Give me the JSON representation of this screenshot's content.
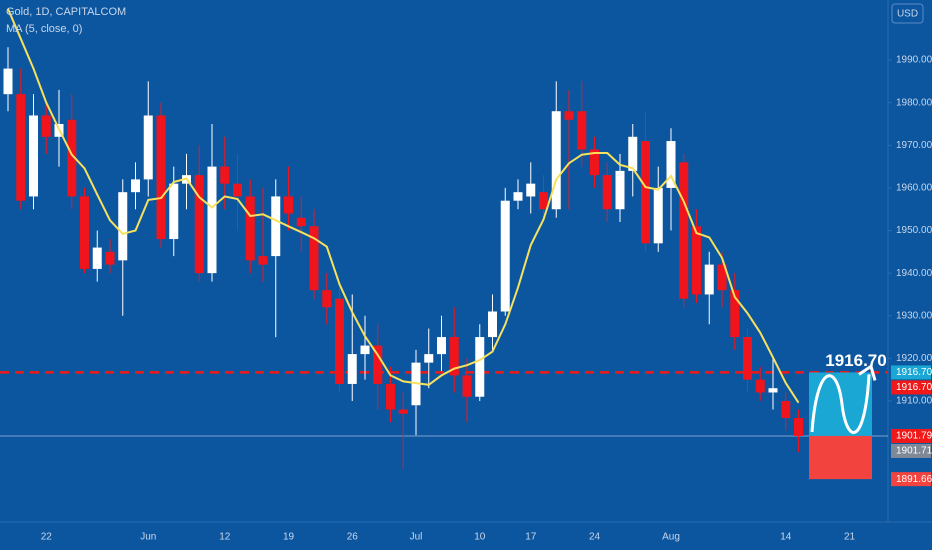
{
  "chart_data": {
    "type": "candlestick",
    "title": "Gold, 1D, CAPITALCOM",
    "currency": "USD",
    "categories": [
      null,
      null,
      null,
      "22",
      null,
      null,
      null,
      null,
      null,
      null,
      null,
      "Jun",
      null,
      null,
      null,
      null,
      null,
      "12",
      null,
      null,
      null,
      null,
      "19",
      null,
      null,
      null,
      null,
      "26",
      null,
      null,
      null,
      null,
      "Jul",
      null,
      null,
      null,
      null,
      "10",
      null,
      null,
      null,
      "17",
      null,
      null,
      null,
      null,
      "24",
      null,
      null,
      null,
      null,
      null,
      "Aug",
      null,
      null,
      null,
      null,
      null,
      null,
      null,
      null,
      "14",
      null,
      null,
      null,
      null,
      "21"
    ],
    "open": [
      1982,
      1982,
      1958,
      1977,
      1972,
      1976,
      1958,
      1941,
      1945,
      1943,
      1959,
      1962,
      1977,
      1948,
      1961,
      1963,
      1940,
      1965,
      1961,
      1958,
      1944,
      1944,
      1958,
      1953,
      1951,
      1936,
      1934,
      1914,
      1921,
      1923,
      1914,
      1908,
      1909,
      1919,
      1921,
      1925,
      1916,
      1911,
      1925,
      1931,
      1957,
      1958,
      1959,
      1955,
      1978,
      1978,
      1969,
      1963,
      1955,
      1964,
      1971,
      1947,
      1960,
      1966,
      1951,
      1935,
      1942,
      1936,
      1925,
      1915,
      1912,
      1910,
      1906,
      null,
      null,
      null,
      null
    ],
    "high": [
      1993,
      1988,
      1982,
      1980,
      1983,
      1982,
      1960,
      1950,
      1948,
      1962,
      1966,
      1985,
      1980,
      1965,
      1968,
      1970,
      1975,
      1972,
      1968,
      1962,
      1960,
      1962,
      1965,
      1958,
      1955,
      1940,
      1937,
      1935,
      1930,
      1928,
      1918,
      1912,
      1922,
      1927,
      1930,
      1932,
      1920,
      1928,
      1935,
      1960,
      1962,
      1966,
      1963,
      1985,
      1983,
      1985,
      1972,
      1966,
      1968,
      1975,
      1978,
      1965,
      1974,
      1968,
      1955,
      1945,
      1945,
      1940,
      1927,
      1918,
      1920,
      1912,
      1908,
      null,
      null,
      null,
      null
    ],
    "low": [
      1978,
      1955,
      1955,
      1968,
      1965,
      1955,
      1940,
      1938,
      1940,
      1930,
      1955,
      1958,
      1946,
      1944,
      1955,
      1938,
      1938,
      1955,
      1950,
      1940,
      1938,
      1925,
      1950,
      1945,
      1934,
      1928,
      1912,
      1910,
      1915,
      1908,
      1905,
      1894,
      1902,
      1913,
      1917,
      1912,
      1905,
      1910,
      1922,
      1930,
      1955,
      1954,
      1952,
      1953,
      1955,
      1965,
      1960,
      1952,
      1952,
      1958,
      1945,
      1945,
      1950,
      1932,
      1933,
      1928,
      1932,
      1922,
      1912,
      1910,
      1908,
      1903,
      1898,
      null,
      null,
      null,
      null
    ],
    "close": [
      1988,
      1957,
      1977,
      1972,
      1975,
      1958,
      1941,
      1946,
      1942,
      1959,
      1962,
      1977,
      1948,
      1961,
      1963,
      1940,
      1965,
      1961,
      1958,
      1943,
      1942,
      1958,
      1954,
      1951,
      1936,
      1932,
      1914,
      1921,
      1923,
      1914,
      1908,
      1907,
      1919,
      1921,
      1925,
      1916,
      1911,
      1925,
      1931,
      1957,
      1959,
      1961,
      1955,
      1978,
      1976,
      1969,
      1963,
      1955,
      1964,
      1972,
      1947,
      1960,
      1971,
      1934,
      1935,
      1942,
      1936,
      1925,
      1915,
      1912,
      1913,
      1906,
      1901.79,
      null,
      null,
      null,
      null
    ],
    "up_color": "#ffffff",
    "down_color": "#f0151c",
    "series": [
      {
        "name": "MA (5, close, 0)",
        "color": "#f7e15c",
        "values": [
          2002,
          1995,
          1988,
          1980,
          1973.8,
          1967.8,
          1964.6,
          1958.4,
          1952.4,
          1949.2,
          1950,
          1957.2,
          1957.6,
          1961.4,
          1962.2,
          1957.8,
          1955.4,
          1958,
          1957.4,
          1953.4,
          1953.8,
          1952.4,
          1951,
          1949.6,
          1948.2,
          1946.2,
          1937.4,
          1930.8,
          1925.2,
          1920.8,
          1916,
          1914.6,
          1914.2,
          1913.8,
          1916,
          1917.6,
          1918.4,
          1919.6,
          1921.6,
          1928,
          1936.6,
          1946.6,
          1952.6,
          1962,
          1965.8,
          1967.8,
          1968.2,
          1968.2,
          1965.4,
          1964.6,
          1960.2,
          1959.6,
          1962.8,
          1956.8,
          1949.4,
          1948.4,
          1943.6,
          1934.4,
          1930.6,
          1926,
          1920.2,
          1914.2,
          1909.6,
          null,
          null,
          null,
          null
        ]
      }
    ],
    "ylim": [
      1881.6,
      2004.1
    ],
    "yticks": [
      {
        "value": 1910,
        "label": "1910.00"
      },
      {
        "value": 1920,
        "label": "1920.00"
      },
      {
        "value": 1930,
        "label": "1930.00"
      },
      {
        "value": 1940,
        "label": "1940.00"
      },
      {
        "value": 1950,
        "label": "1950.00"
      },
      {
        "value": 1960,
        "label": "1960.00"
      },
      {
        "value": 1970,
        "label": "1970.00"
      },
      {
        "value": 1980,
        "label": "1980.00"
      },
      {
        "value": 1990,
        "label": "1990.00"
      }
    ],
    "hline": {
      "value": 1916.7,
      "color": "#f01818"
    },
    "position": {
      "entry": {
        "value": 1901.79,
        "label": "1901.79"
      },
      "target": {
        "value": 1916.7,
        "label": "1916.70"
      },
      "stop": {
        "value": 1891.66,
        "label": "1891.66"
      },
      "profit_color": "#1aa7d4",
      "loss_color": "#f2433f"
    },
    "price_labels": [
      {
        "value": 1916.7,
        "label": "1916.70",
        "color": "#1aa7d4"
      },
      {
        "value": 1916.7,
        "label": "1916.70",
        "color": "#f01818"
      },
      {
        "value": 1901.79,
        "label": "1901.79",
        "color": "#f01818"
      },
      {
        "value": 1901.71,
        "label": "1901.71",
        "color": "#7f8896"
      },
      {
        "value": 1891.66,
        "label": "1891.66",
        "color": "#f2433f"
      }
    ]
  }
}
